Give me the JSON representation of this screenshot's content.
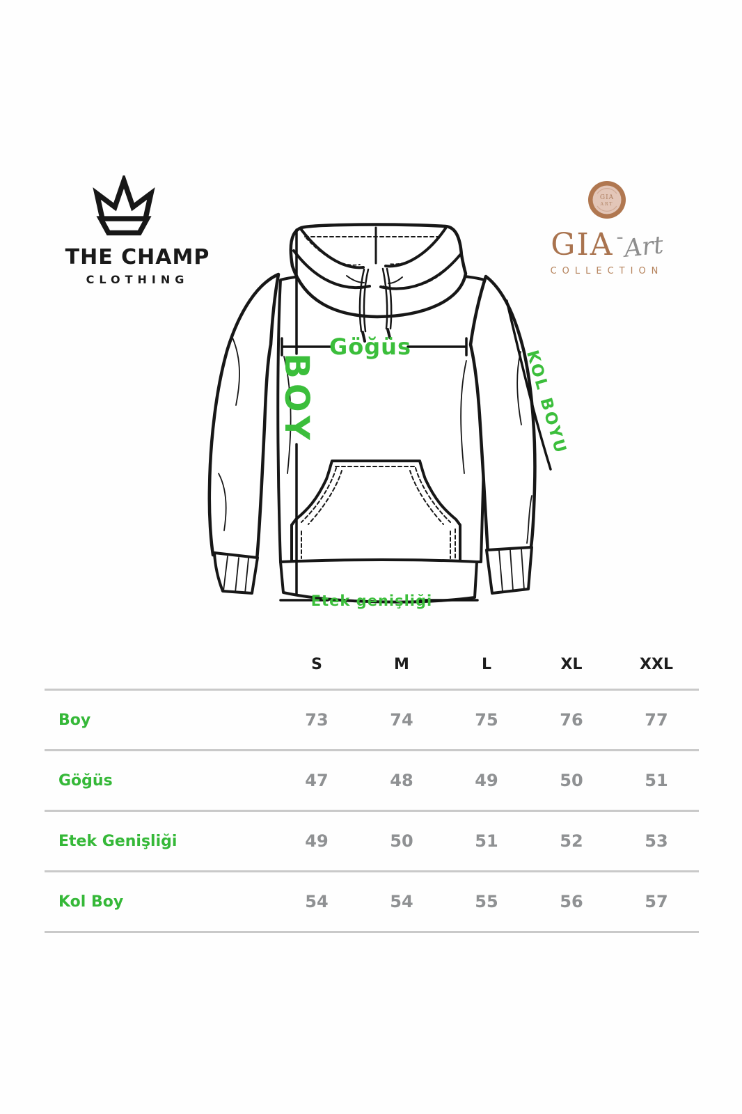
{
  "brand": {
    "line1": "THE CHAMP",
    "line2": "CLOTHING"
  },
  "collection_logo": {
    "name": "GIA",
    "dash": "-",
    "script": "Art",
    "subtitle": "COLLECTION"
  },
  "diagram": {
    "labels": {
      "length": "BOY",
      "chest": "Göğüs",
      "sleeve": "KOL BOYU",
      "hem": "Etek genişliği"
    }
  },
  "size_table": {
    "columns": [
      "S",
      "M",
      "L",
      "XL",
      "XXL"
    ],
    "rows": [
      {
        "label": "Boy",
        "values": [
          "73",
          "74",
          "75",
          "76",
          "77"
        ]
      },
      {
        "label": "Göğüs",
        "values": [
          "47",
          "48",
          "49",
          "50",
          "51"
        ]
      },
      {
        "label": "Etek Genişliği",
        "values": [
          "49",
          "50",
          "51",
          "52",
          "53"
        ]
      },
      {
        "label": "Kol Boy",
        "values": [
          "54",
          "54",
          "55",
          "56",
          "57"
        ]
      }
    ]
  },
  "colors": {
    "accent_green": "#3bbe3b",
    "brand_brown": "#a9734e",
    "value_gray": "#8f9193",
    "divider_gray": "#c9c9c9",
    "ink": "#171717"
  }
}
